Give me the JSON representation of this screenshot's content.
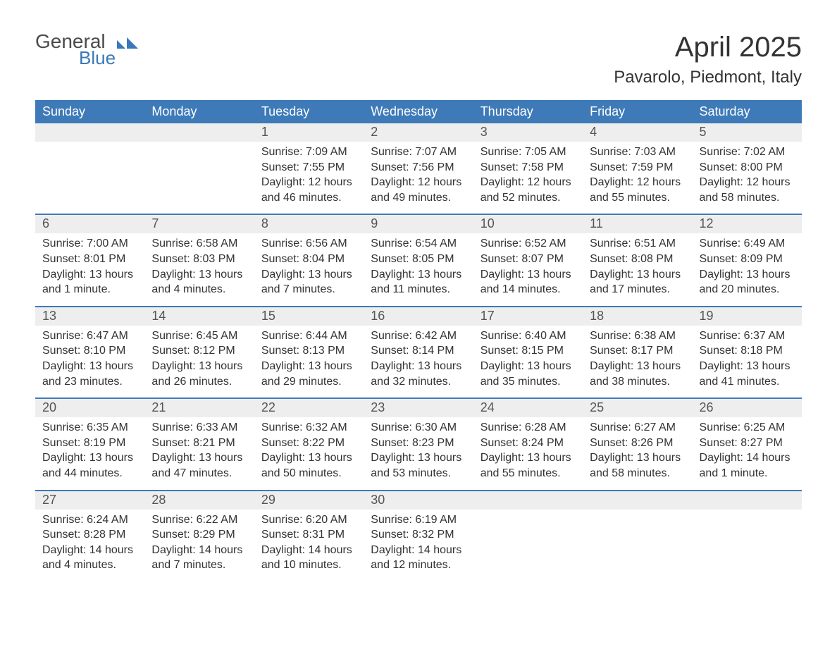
{
  "logo": {
    "word1": "General",
    "word2": "Blue",
    "icon_color": "#3a78b8",
    "text_gray": "#4a4a4a"
  },
  "title": "April 2025",
  "location": "Pavarolo, Piedmont, Italy",
  "colors": {
    "header_bg": "#3e7ab8",
    "header_text": "#ffffff",
    "daynum_bg": "#eeeeee",
    "daynum_text": "#555555",
    "body_text": "#333333",
    "row_border": "#3e7ab8",
    "page_bg": "#ffffff"
  },
  "font": {
    "family": "Arial",
    "weekday_size": 18,
    "title_size": 40,
    "location_size": 24,
    "daynum_size": 18,
    "body_size": 16
  },
  "weekdays": [
    "Sunday",
    "Monday",
    "Tuesday",
    "Wednesday",
    "Thursday",
    "Friday",
    "Saturday"
  ],
  "weeks": [
    [
      null,
      null,
      {
        "n": "1",
        "sunrise": "7:09 AM",
        "sunset": "7:55 PM",
        "daylight": "12 hours and 46 minutes."
      },
      {
        "n": "2",
        "sunrise": "7:07 AM",
        "sunset": "7:56 PM",
        "daylight": "12 hours and 49 minutes."
      },
      {
        "n": "3",
        "sunrise": "7:05 AM",
        "sunset": "7:58 PM",
        "daylight": "12 hours and 52 minutes."
      },
      {
        "n": "4",
        "sunrise": "7:03 AM",
        "sunset": "7:59 PM",
        "daylight": "12 hours and 55 minutes."
      },
      {
        "n": "5",
        "sunrise": "7:02 AM",
        "sunset": "8:00 PM",
        "daylight": "12 hours and 58 minutes."
      }
    ],
    [
      {
        "n": "6",
        "sunrise": "7:00 AM",
        "sunset": "8:01 PM",
        "daylight": "13 hours and 1 minute."
      },
      {
        "n": "7",
        "sunrise": "6:58 AM",
        "sunset": "8:03 PM",
        "daylight": "13 hours and 4 minutes."
      },
      {
        "n": "8",
        "sunrise": "6:56 AM",
        "sunset": "8:04 PM",
        "daylight": "13 hours and 7 minutes."
      },
      {
        "n": "9",
        "sunrise": "6:54 AM",
        "sunset": "8:05 PM",
        "daylight": "13 hours and 11 minutes."
      },
      {
        "n": "10",
        "sunrise": "6:52 AM",
        "sunset": "8:07 PM",
        "daylight": "13 hours and 14 minutes."
      },
      {
        "n": "11",
        "sunrise": "6:51 AM",
        "sunset": "8:08 PM",
        "daylight": "13 hours and 17 minutes."
      },
      {
        "n": "12",
        "sunrise": "6:49 AM",
        "sunset": "8:09 PM",
        "daylight": "13 hours and 20 minutes."
      }
    ],
    [
      {
        "n": "13",
        "sunrise": "6:47 AM",
        "sunset": "8:10 PM",
        "daylight": "13 hours and 23 minutes."
      },
      {
        "n": "14",
        "sunrise": "6:45 AM",
        "sunset": "8:12 PM",
        "daylight": "13 hours and 26 minutes."
      },
      {
        "n": "15",
        "sunrise": "6:44 AM",
        "sunset": "8:13 PM",
        "daylight": "13 hours and 29 minutes."
      },
      {
        "n": "16",
        "sunrise": "6:42 AM",
        "sunset": "8:14 PM",
        "daylight": "13 hours and 32 minutes."
      },
      {
        "n": "17",
        "sunrise": "6:40 AM",
        "sunset": "8:15 PM",
        "daylight": "13 hours and 35 minutes."
      },
      {
        "n": "18",
        "sunrise": "6:38 AM",
        "sunset": "8:17 PM",
        "daylight": "13 hours and 38 minutes."
      },
      {
        "n": "19",
        "sunrise": "6:37 AM",
        "sunset": "8:18 PM",
        "daylight": "13 hours and 41 minutes."
      }
    ],
    [
      {
        "n": "20",
        "sunrise": "6:35 AM",
        "sunset": "8:19 PM",
        "daylight": "13 hours and 44 minutes."
      },
      {
        "n": "21",
        "sunrise": "6:33 AM",
        "sunset": "8:21 PM",
        "daylight": "13 hours and 47 minutes."
      },
      {
        "n": "22",
        "sunrise": "6:32 AM",
        "sunset": "8:22 PM",
        "daylight": "13 hours and 50 minutes."
      },
      {
        "n": "23",
        "sunrise": "6:30 AM",
        "sunset": "8:23 PM",
        "daylight": "13 hours and 53 minutes."
      },
      {
        "n": "24",
        "sunrise": "6:28 AM",
        "sunset": "8:24 PM",
        "daylight": "13 hours and 55 minutes."
      },
      {
        "n": "25",
        "sunrise": "6:27 AM",
        "sunset": "8:26 PM",
        "daylight": "13 hours and 58 minutes."
      },
      {
        "n": "26",
        "sunrise": "6:25 AM",
        "sunset": "8:27 PM",
        "daylight": "14 hours and 1 minute."
      }
    ],
    [
      {
        "n": "27",
        "sunrise": "6:24 AM",
        "sunset": "8:28 PM",
        "daylight": "14 hours and 4 minutes."
      },
      {
        "n": "28",
        "sunrise": "6:22 AM",
        "sunset": "8:29 PM",
        "daylight": "14 hours and 7 minutes."
      },
      {
        "n": "29",
        "sunrise": "6:20 AM",
        "sunset": "8:31 PM",
        "daylight": "14 hours and 10 minutes."
      },
      {
        "n": "30",
        "sunrise": "6:19 AM",
        "sunset": "8:32 PM",
        "daylight": "14 hours and 12 minutes."
      },
      null,
      null,
      null
    ]
  ],
  "labels": {
    "sunrise": "Sunrise:",
    "sunset": "Sunset:",
    "daylight": "Daylight:"
  }
}
